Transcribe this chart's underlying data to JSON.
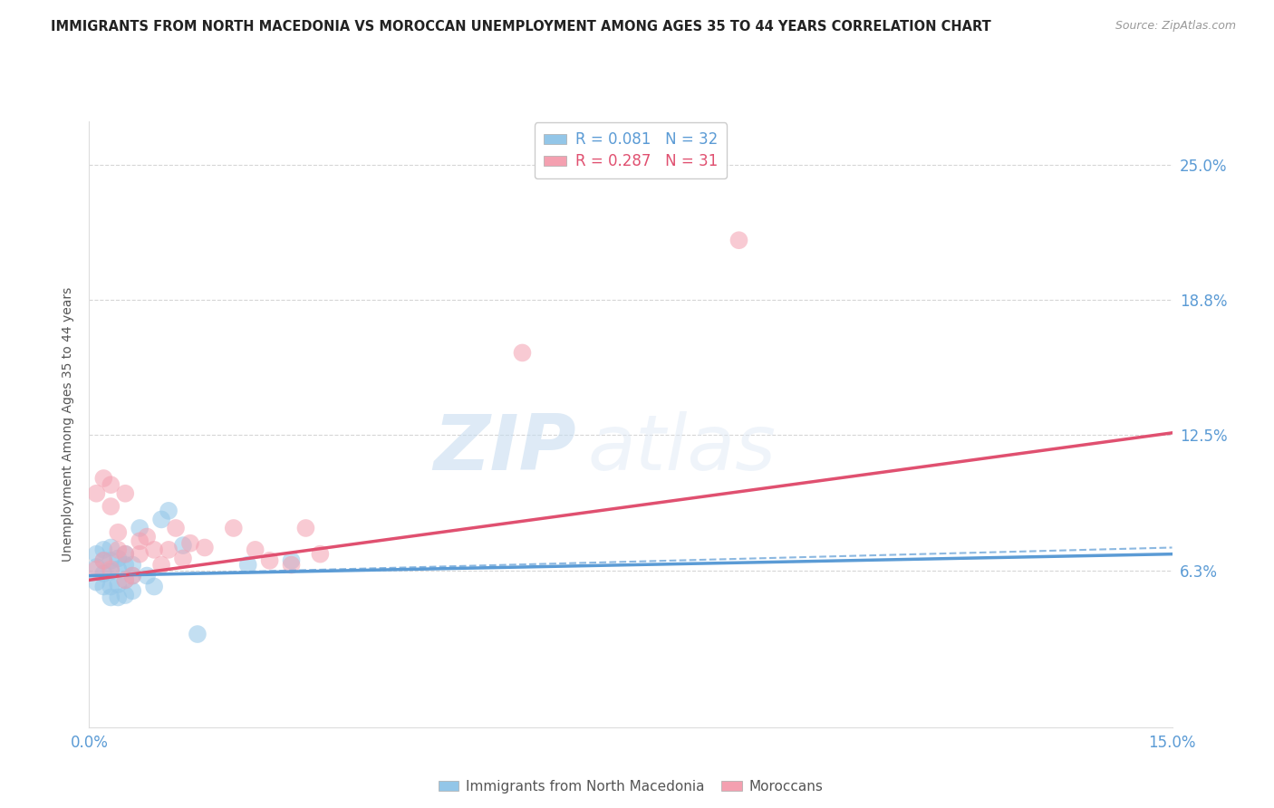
{
  "title": "IMMIGRANTS FROM NORTH MACEDONIA VS MOROCCAN UNEMPLOYMENT AMONG AGES 35 TO 44 YEARS CORRELATION CHART",
  "source": "Source: ZipAtlas.com",
  "ylabel": "Unemployment Among Ages 35 to 44 years",
  "xlim": [
    0.0,
    0.15
  ],
  "ylim": [
    -0.01,
    0.27
  ],
  "yticks": [
    0.0,
    0.0625,
    0.125,
    0.1875,
    0.25
  ],
  "ytick_labels": [
    "",
    "6.3%",
    "12.5%",
    "18.8%",
    "25.0%"
  ],
  "xticks": [
    0.0,
    0.025,
    0.05,
    0.075,
    0.1,
    0.125,
    0.15
  ],
  "xtick_labels": [
    "0.0%",
    "",
    "",
    "",
    "",
    "",
    "15.0%"
  ],
  "legend_r1": "R = 0.081",
  "legend_n1": "N = 32",
  "legend_r2": "R = 0.287",
  "legend_n2": "N = 31",
  "color_blue": "#93c6e8",
  "color_pink": "#f4a0b0",
  "color_text_blue": "#5b9bd5",
  "color_text_pink": "#e05070",
  "watermark_zip": "ZIP",
  "watermark_atlas": "atlas",
  "blue_scatter_x": [
    0.001,
    0.001,
    0.001,
    0.002,
    0.002,
    0.002,
    0.002,
    0.003,
    0.003,
    0.003,
    0.003,
    0.003,
    0.004,
    0.004,
    0.004,
    0.004,
    0.005,
    0.005,
    0.005,
    0.005,
    0.006,
    0.006,
    0.006,
    0.007,
    0.008,
    0.009,
    0.01,
    0.011,
    0.013,
    0.015,
    0.022,
    0.028
  ],
  "blue_scatter_y": [
    0.057,
    0.064,
    0.07,
    0.055,
    0.061,
    0.067,
    0.072,
    0.05,
    0.055,
    0.062,
    0.067,
    0.073,
    0.05,
    0.056,
    0.063,
    0.068,
    0.051,
    0.058,
    0.065,
    0.07,
    0.053,
    0.06,
    0.065,
    0.082,
    0.06,
    0.055,
    0.086,
    0.09,
    0.074,
    0.033,
    0.065,
    0.067
  ],
  "pink_scatter_x": [
    0.001,
    0.001,
    0.002,
    0.002,
    0.003,
    0.003,
    0.003,
    0.004,
    0.004,
    0.005,
    0.005,
    0.005,
    0.006,
    0.007,
    0.007,
    0.008,
    0.009,
    0.01,
    0.011,
    0.012,
    0.013,
    0.014,
    0.016,
    0.02,
    0.023,
    0.025,
    0.028,
    0.03,
    0.032,
    0.06,
    0.09
  ],
  "pink_scatter_y": [
    0.063,
    0.098,
    0.067,
    0.105,
    0.063,
    0.092,
    0.102,
    0.072,
    0.08,
    0.058,
    0.07,
    0.098,
    0.06,
    0.07,
    0.076,
    0.078,
    0.072,
    0.065,
    0.072,
    0.082,
    0.068,
    0.075,
    0.073,
    0.082,
    0.072,
    0.067,
    0.065,
    0.082,
    0.07,
    0.163,
    0.215
  ],
  "blue_trend_x": [
    0.0,
    0.15
  ],
  "blue_trend_y": [
    0.06,
    0.07
  ],
  "pink_trend_x": [
    0.0,
    0.15
  ],
  "pink_trend_y": [
    0.058,
    0.126
  ],
  "dashed_trend_x": [
    0.0,
    0.15
  ],
  "dashed_trend_y": [
    0.06,
    0.073
  ],
  "bg_color": "#ffffff",
  "grid_color": "#cccccc"
}
